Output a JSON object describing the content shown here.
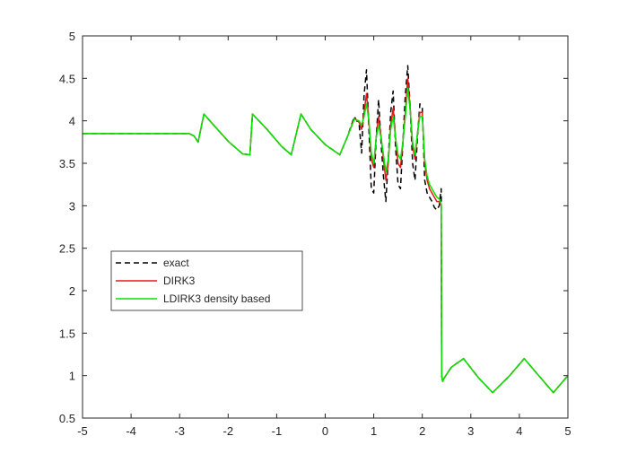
{
  "chart_data": {
    "type": "line",
    "title": "",
    "xlabel": "",
    "ylabel": "",
    "xlim": [
      -5,
      5
    ],
    "ylim": [
      0.5,
      5
    ],
    "grid": false,
    "legend_position": "lower-left",
    "xticks": [
      -5,
      -4,
      -3,
      -2,
      -1,
      0,
      1,
      2,
      3,
      4,
      5
    ],
    "xtick_labels": [
      "-5",
      "-4",
      "-3",
      "-2",
      "-1",
      "0",
      "1",
      "2",
      "3",
      "4",
      "5"
    ],
    "yticks": [
      0.5,
      1,
      1.5,
      2,
      2.5,
      3,
      3.5,
      4,
      4.5,
      5
    ],
    "ytick_labels": [
      "0.5",
      "1",
      "1.5",
      "2",
      "2.5",
      "3",
      "3.5",
      "4",
      "4.5",
      "5"
    ],
    "series": [
      {
        "name": "exact",
        "color": "#000000",
        "dash": "dashed",
        "x": [
          -5,
          -2.8,
          -2.7,
          -2.62,
          -2.5,
          -2.3,
          -2.0,
          -1.7,
          -1.55,
          -1.5,
          -1.2,
          -0.9,
          -0.7,
          -0.5,
          -0.3,
          0.0,
          0.3,
          0.45,
          0.6,
          0.7,
          0.75,
          0.8,
          0.85,
          0.9,
          0.95,
          1.0,
          1.05,
          1.1,
          1.15,
          1.2,
          1.25,
          1.3,
          1.35,
          1.4,
          1.45,
          1.5,
          1.55,
          1.6,
          1.65,
          1.7,
          1.75,
          1.8,
          1.85,
          1.9,
          1.95,
          2.0,
          2.05,
          2.1,
          2.15,
          2.2,
          2.25,
          2.3,
          2.35,
          2.39,
          2.4,
          2.42,
          2.45,
          2.6,
          2.85,
          3.15,
          3.45,
          3.8,
          4.1,
          4.4,
          4.7,
          4.85,
          5.0
        ],
        "y": [
          3.85,
          3.85,
          3.82,
          3.75,
          4.08,
          3.95,
          3.76,
          3.61,
          3.6,
          4.08,
          3.9,
          3.7,
          3.6,
          4.08,
          3.9,
          3.72,
          3.6,
          3.8,
          4.05,
          3.95,
          3.62,
          4.3,
          4.6,
          3.9,
          3.2,
          3.15,
          3.8,
          4.25,
          3.75,
          3.35,
          3.05,
          3.55,
          4.1,
          4.35,
          3.7,
          3.25,
          3.2,
          3.75,
          4.3,
          4.65,
          4.15,
          3.5,
          3.3,
          3.8,
          4.2,
          4.15,
          3.3,
          3.15,
          3.1,
          3.05,
          2.98,
          2.95,
          3.0,
          3.2,
          1.0,
          0.93,
          0.97,
          1.1,
          1.2,
          0.98,
          0.8,
          1.0,
          1.2,
          1.0,
          0.8,
          0.9,
          1.0
        ]
      },
      {
        "name": "DIRK3",
        "color": "#e8171a",
        "dash": "solid",
        "x": [
          -5,
          -2.8,
          -2.7,
          -2.62,
          -2.5,
          -2.3,
          -2.0,
          -1.7,
          -1.55,
          -1.5,
          -1.2,
          -0.9,
          -0.7,
          -0.5,
          -0.3,
          0.0,
          0.3,
          0.45,
          0.6,
          0.7,
          0.75,
          0.8,
          0.85,
          0.9,
          0.95,
          1.0,
          1.05,
          1.1,
          1.15,
          1.2,
          1.25,
          1.3,
          1.35,
          1.4,
          1.45,
          1.5,
          1.55,
          1.6,
          1.65,
          1.7,
          1.75,
          1.8,
          1.85,
          1.9,
          1.95,
          2.0,
          2.05,
          2.1,
          2.15,
          2.2,
          2.25,
          2.3,
          2.35,
          2.39,
          2.4,
          2.42,
          2.45,
          2.6,
          2.85,
          3.15,
          3.45,
          3.8,
          4.1,
          4.4,
          4.7,
          4.85,
          5.0
        ],
        "y": [
          3.85,
          3.85,
          3.82,
          3.75,
          4.08,
          3.95,
          3.76,
          3.61,
          3.6,
          4.08,
          3.9,
          3.7,
          3.6,
          4.08,
          3.9,
          3.72,
          3.6,
          3.8,
          4.03,
          3.98,
          3.9,
          4.1,
          4.32,
          4.0,
          3.55,
          3.45,
          3.8,
          4.05,
          3.82,
          3.55,
          3.3,
          3.5,
          3.95,
          4.15,
          3.8,
          3.5,
          3.45,
          3.75,
          4.1,
          4.5,
          4.15,
          3.7,
          3.55,
          3.85,
          4.1,
          4.1,
          3.5,
          3.3,
          3.2,
          3.15,
          3.1,
          3.05,
          3.05,
          3.0,
          1.0,
          0.93,
          0.97,
          1.1,
          1.2,
          0.98,
          0.8,
          1.0,
          1.2,
          1.0,
          0.8,
          0.9,
          1.0
        ]
      },
      {
        "name": "LDIRK3 density based",
        "color": "#00e600",
        "dash": "solid",
        "x": [
          -5,
          -2.8,
          -2.7,
          -2.62,
          -2.5,
          -2.3,
          -2.0,
          -1.7,
          -1.55,
          -1.5,
          -1.2,
          -0.9,
          -0.7,
          -0.5,
          -0.3,
          0.0,
          0.3,
          0.45,
          0.6,
          0.7,
          0.75,
          0.8,
          0.85,
          0.9,
          0.95,
          1.0,
          1.05,
          1.1,
          1.15,
          1.2,
          1.25,
          1.3,
          1.35,
          1.4,
          1.45,
          1.5,
          1.55,
          1.6,
          1.65,
          1.7,
          1.75,
          1.8,
          1.85,
          1.9,
          1.95,
          2.0,
          2.05,
          2.1,
          2.15,
          2.2,
          2.25,
          2.3,
          2.35,
          2.39,
          2.4,
          2.42,
          2.45,
          2.6,
          2.85,
          3.15,
          3.45,
          3.8,
          4.1,
          4.4,
          4.7,
          4.85,
          5.0
        ],
        "y": [
          3.85,
          3.85,
          3.82,
          3.75,
          4.08,
          3.95,
          3.76,
          3.61,
          3.6,
          4.08,
          3.9,
          3.7,
          3.6,
          4.08,
          3.9,
          3.72,
          3.6,
          3.8,
          4.02,
          4.0,
          3.95,
          4.05,
          4.2,
          4.0,
          3.62,
          3.5,
          3.8,
          3.95,
          3.8,
          3.6,
          3.4,
          3.55,
          3.9,
          4.05,
          3.8,
          3.6,
          3.55,
          3.75,
          4.05,
          4.38,
          4.12,
          3.75,
          3.6,
          3.85,
          4.05,
          4.05,
          3.55,
          3.35,
          3.25,
          3.2,
          3.15,
          3.1,
          3.08,
          3.02,
          1.0,
          0.93,
          0.97,
          1.1,
          1.2,
          0.98,
          0.8,
          1.0,
          1.2,
          1.0,
          0.8,
          0.9,
          1.0
        ]
      }
    ]
  }
}
